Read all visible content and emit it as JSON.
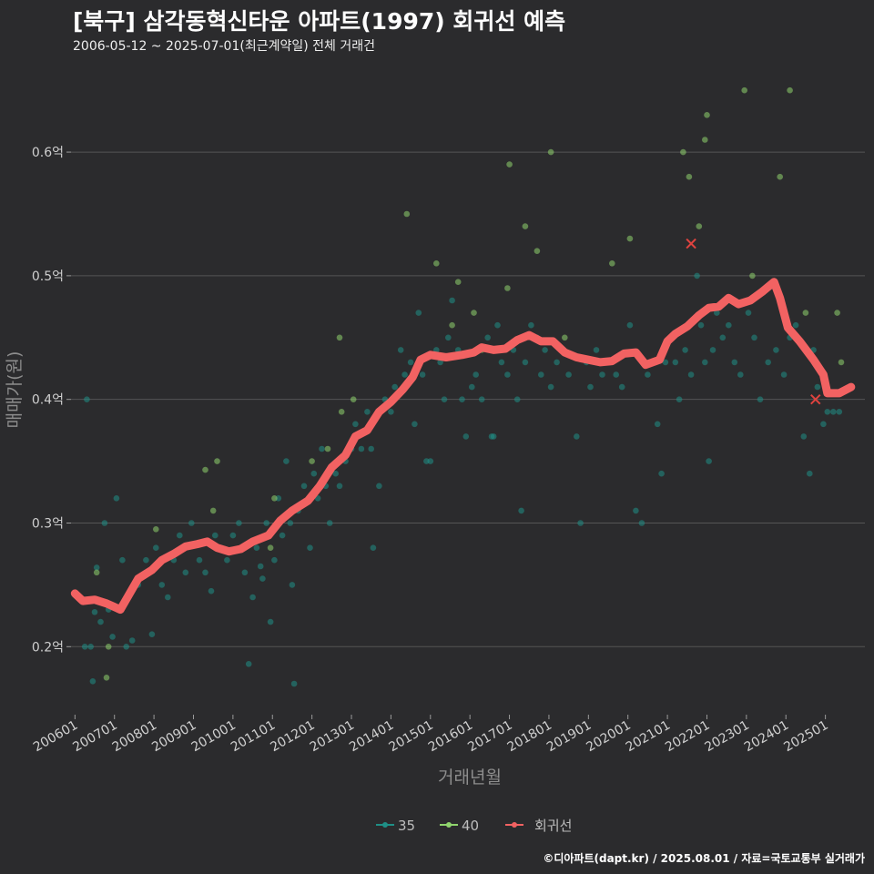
{
  "header": {
    "title": "[북구] 삼각동혁신타운 아파트(1997) 회귀선 예측",
    "subtitle": "2006-05-12 ~ 2025-07-01(최근계약일) 전체 거래건"
  },
  "footer": {
    "credit": "©디아파트(dapt.kr) / 2025.08.01 / 자료=국토교통부 실거래가"
  },
  "colors": {
    "background": "#2b2b2d",
    "grid": "#555555",
    "series_35": "#1f8f86",
    "series_40": "#8fd46d",
    "regression": "#f26262"
  },
  "chart_data": {
    "type": "scatter",
    "title": "[북구] 삼각동혁신타운 아파트(1997) 회귀선 예측",
    "xlabel": "거래년월",
    "ylabel": "매매가(원)",
    "x_unit": "year (decimal)",
    "xlim": [
      2005.9,
      2026.0
    ],
    "ylim": [
      0.145,
      0.67
    ],
    "x_ticks": [
      {
        "x": 2006.0,
        "label": "200601"
      },
      {
        "x": 2007.0,
        "label": "200701"
      },
      {
        "x": 2008.0,
        "label": "200801"
      },
      {
        "x": 2009.0,
        "label": "200901"
      },
      {
        "x": 2010.0,
        "label": "201001"
      },
      {
        "x": 2011.0,
        "label": "201101"
      },
      {
        "x": 2012.0,
        "label": "201201"
      },
      {
        "x": 2013.0,
        "label": "201301"
      },
      {
        "x": 2014.0,
        "label": "201401"
      },
      {
        "x": 2015.0,
        "label": "201501"
      },
      {
        "x": 2016.0,
        "label": "201601"
      },
      {
        "x": 2017.0,
        "label": "201701"
      },
      {
        "x": 2018.0,
        "label": "201801"
      },
      {
        "x": 2019.0,
        "label": "201901"
      },
      {
        "x": 2020.0,
        "label": "202001"
      },
      {
        "x": 2021.0,
        "label": "202101"
      },
      {
        "x": 2022.0,
        "label": "202201"
      },
      {
        "x": 2023.0,
        "label": "202301"
      },
      {
        "x": 2024.0,
        "label": "202401"
      },
      {
        "x": 2025.0,
        "label": "202501"
      }
    ],
    "y_ticks": [
      {
        "y": 0.2,
        "label": "0.2억"
      },
      {
        "y": 0.3,
        "label": "0.3억"
      },
      {
        "y": 0.4,
        "label": "0.4억"
      },
      {
        "y": 0.5,
        "label": "0.5억"
      },
      {
        "y": 0.6,
        "label": "0.6억"
      }
    ],
    "legend": [
      {
        "name": "35",
        "color": "#1f8f86"
      },
      {
        "name": "40",
        "color": "#8fd46d"
      },
      {
        "name": "회귀선",
        "color": "#f26262"
      }
    ],
    "legend_position": "bottom",
    "series": [
      {
        "name": "35",
        "type": "scatter",
        "points": [
          [
            2006.3,
            0.4
          ],
          [
            2006.25,
            0.2
          ],
          [
            2006.4,
            0.2
          ],
          [
            2006.45,
            0.172
          ],
          [
            2006.5,
            0.228
          ],
          [
            2006.55,
            0.264
          ],
          [
            2006.65,
            0.22
          ],
          [
            2006.75,
            0.3
          ],
          [
            2006.85,
            0.23
          ],
          [
            2006.95,
            0.208
          ],
          [
            2007.05,
            0.32
          ],
          [
            2007.2,
            0.27
          ],
          [
            2007.3,
            0.2
          ],
          [
            2007.45,
            0.205
          ],
          [
            2007.6,
            0.25
          ],
          [
            2007.8,
            0.27
          ],
          [
            2007.95,
            0.21
          ],
          [
            2008.05,
            0.28
          ],
          [
            2008.2,
            0.25
          ],
          [
            2008.35,
            0.24
          ],
          [
            2008.5,
            0.27
          ],
          [
            2008.65,
            0.29
          ],
          [
            2008.8,
            0.26
          ],
          [
            2008.95,
            0.3
          ],
          [
            2009.15,
            0.27
          ],
          [
            2009.3,
            0.26
          ],
          [
            2009.45,
            0.245
          ],
          [
            2009.55,
            0.29
          ],
          [
            2009.7,
            0.28
          ],
          [
            2009.85,
            0.27
          ],
          [
            2010.0,
            0.29
          ],
          [
            2010.15,
            0.3
          ],
          [
            2010.3,
            0.26
          ],
          [
            2010.4,
            0.186
          ],
          [
            2010.5,
            0.24
          ],
          [
            2010.6,
            0.28
          ],
          [
            2010.7,
            0.265
          ],
          [
            2010.75,
            0.255
          ],
          [
            2010.85,
            0.3
          ],
          [
            2010.95,
            0.22
          ],
          [
            2011.05,
            0.27
          ],
          [
            2011.15,
            0.32
          ],
          [
            2011.25,
            0.29
          ],
          [
            2011.35,
            0.35
          ],
          [
            2011.45,
            0.3
          ],
          [
            2011.5,
            0.25
          ],
          [
            2011.55,
            0.17
          ],
          [
            2011.65,
            0.31
          ],
          [
            2011.8,
            0.33
          ],
          [
            2011.95,
            0.28
          ],
          [
            2012.05,
            0.34
          ],
          [
            2012.15,
            0.32
          ],
          [
            2012.25,
            0.36
          ],
          [
            2012.35,
            0.33
          ],
          [
            2012.45,
            0.3
          ],
          [
            2012.6,
            0.34
          ],
          [
            2012.7,
            0.33
          ],
          [
            2012.85,
            0.35
          ],
          [
            2013.0,
            0.36
          ],
          [
            2013.1,
            0.38
          ],
          [
            2013.25,
            0.36
          ],
          [
            2013.4,
            0.39
          ],
          [
            2013.5,
            0.36
          ],
          [
            2013.55,
            0.28
          ],
          [
            2013.7,
            0.33
          ],
          [
            2013.85,
            0.4
          ],
          [
            2014.0,
            0.39
          ],
          [
            2014.1,
            0.41
          ],
          [
            2014.25,
            0.44
          ],
          [
            2014.35,
            0.42
          ],
          [
            2014.5,
            0.43
          ],
          [
            2014.6,
            0.38
          ],
          [
            2014.7,
            0.47
          ],
          [
            2014.8,
            0.42
          ],
          [
            2014.9,
            0.35
          ],
          [
            2015.0,
            0.35
          ],
          [
            2015.15,
            0.44
          ],
          [
            2015.25,
            0.43
          ],
          [
            2015.35,
            0.4
          ],
          [
            2015.45,
            0.45
          ],
          [
            2015.55,
            0.48
          ],
          [
            2015.7,
            0.44
          ],
          [
            2015.8,
            0.4
          ],
          [
            2015.9,
            0.37
          ],
          [
            2016.05,
            0.41
          ],
          [
            2016.15,
            0.42
          ],
          [
            2016.3,
            0.4
          ],
          [
            2016.45,
            0.45
          ],
          [
            2016.55,
            0.37
          ],
          [
            2016.6,
            0.37
          ],
          [
            2016.7,
            0.46
          ],
          [
            2016.8,
            0.43
          ],
          [
            2016.95,
            0.42
          ],
          [
            2017.1,
            0.44
          ],
          [
            2017.2,
            0.4
          ],
          [
            2017.3,
            0.31
          ],
          [
            2017.4,
            0.43
          ],
          [
            2017.55,
            0.46
          ],
          [
            2017.7,
            0.45
          ],
          [
            2017.8,
            0.42
          ],
          [
            2017.9,
            0.44
          ],
          [
            2018.05,
            0.41
          ],
          [
            2018.2,
            0.43
          ],
          [
            2018.35,
            0.44
          ],
          [
            2018.5,
            0.42
          ],
          [
            2018.7,
            0.37
          ],
          [
            2018.8,
            0.3
          ],
          [
            2018.95,
            0.43
          ],
          [
            2019.05,
            0.41
          ],
          [
            2019.2,
            0.44
          ],
          [
            2019.35,
            0.42
          ],
          [
            2019.55,
            0.43
          ],
          [
            2019.7,
            0.42
          ],
          [
            2019.85,
            0.41
          ],
          [
            2020.05,
            0.46
          ],
          [
            2020.2,
            0.31
          ],
          [
            2020.35,
            0.3
          ],
          [
            2020.5,
            0.42
          ],
          [
            2020.65,
            0.43
          ],
          [
            2020.75,
            0.38
          ],
          [
            2020.85,
            0.34
          ],
          [
            2020.95,
            0.43
          ],
          [
            2021.1,
            0.45
          ],
          [
            2021.2,
            0.43
          ],
          [
            2021.3,
            0.4
          ],
          [
            2021.45,
            0.44
          ],
          [
            2021.6,
            0.42
          ],
          [
            2021.75,
            0.5
          ],
          [
            2021.85,
            0.46
          ],
          [
            2021.95,
            0.43
          ],
          [
            2022.05,
            0.35
          ],
          [
            2022.15,
            0.44
          ],
          [
            2022.25,
            0.47
          ],
          [
            2022.4,
            0.45
          ],
          [
            2022.55,
            0.46
          ],
          [
            2022.7,
            0.43
          ],
          [
            2022.85,
            0.42
          ],
          [
            2023.05,
            0.47
          ],
          [
            2023.2,
            0.45
          ],
          [
            2023.35,
            0.4
          ],
          [
            2023.55,
            0.43
          ],
          [
            2023.75,
            0.44
          ],
          [
            2023.95,
            0.42
          ],
          [
            2024.1,
            0.45
          ],
          [
            2024.25,
            0.46
          ],
          [
            2024.45,
            0.37
          ],
          [
            2024.6,
            0.34
          ],
          [
            2024.7,
            0.44
          ],
          [
            2024.8,
            0.41
          ],
          [
            2024.95,
            0.38
          ],
          [
            2025.05,
            0.39
          ],
          [
            2025.2,
            0.39
          ],
          [
            2025.35,
            0.39
          ]
        ]
      },
      {
        "name": "40",
        "type": "scatter",
        "points": [
          [
            2006.55,
            0.26
          ],
          [
            2006.8,
            0.175
          ],
          [
            2006.85,
            0.2
          ],
          [
            2008.05,
            0.295
          ],
          [
            2009.3,
            0.343
          ],
          [
            2009.5,
            0.31
          ],
          [
            2009.6,
            0.35
          ],
          [
            2010.95,
            0.28
          ],
          [
            2011.05,
            0.32
          ],
          [
            2012.0,
            0.35
          ],
          [
            2012.4,
            0.36
          ],
          [
            2012.7,
            0.45
          ],
          [
            2012.75,
            0.39
          ],
          [
            2013.05,
            0.4
          ],
          [
            2014.4,
            0.55
          ],
          [
            2015.15,
            0.51
          ],
          [
            2015.55,
            0.46
          ],
          [
            2015.7,
            0.495
          ],
          [
            2016.1,
            0.47
          ],
          [
            2016.3,
            0.44
          ],
          [
            2016.95,
            0.49
          ],
          [
            2017.0,
            0.59
          ],
          [
            2017.4,
            0.54
          ],
          [
            2017.7,
            0.52
          ],
          [
            2018.05,
            0.6
          ],
          [
            2018.4,
            0.45
          ],
          [
            2019.6,
            0.51
          ],
          [
            2020.05,
            0.53
          ],
          [
            2021.4,
            0.6
          ],
          [
            2021.55,
            0.58
          ],
          [
            2021.8,
            0.54
          ],
          [
            2021.95,
            0.61
          ],
          [
            2022.0,
            0.63
          ],
          [
            2022.95,
            0.65
          ],
          [
            2023.15,
            0.5
          ],
          [
            2023.85,
            0.58
          ],
          [
            2024.1,
            0.65
          ],
          [
            2024.5,
            0.47
          ],
          [
            2025.3,
            0.47
          ],
          [
            2025.4,
            0.43
          ]
        ]
      },
      {
        "name": "회귀선",
        "type": "line",
        "points": [
          [
            2006.0,
            0.243
          ],
          [
            2006.2,
            0.237
          ],
          [
            2006.5,
            0.238
          ],
          [
            2006.8,
            0.235
          ],
          [
            2007.15,
            0.23
          ],
          [
            2007.6,
            0.255
          ],
          [
            2007.95,
            0.262
          ],
          [
            2008.2,
            0.27
          ],
          [
            2008.5,
            0.275
          ],
          [
            2008.8,
            0.281
          ],
          [
            2009.1,
            0.283
          ],
          [
            2009.35,
            0.285
          ],
          [
            2009.6,
            0.28
          ],
          [
            2009.9,
            0.277
          ],
          [
            2010.2,
            0.279
          ],
          [
            2010.5,
            0.285
          ],
          [
            2010.9,
            0.29
          ],
          [
            2011.2,
            0.302
          ],
          [
            2011.5,
            0.31
          ],
          [
            2011.9,
            0.318
          ],
          [
            2012.2,
            0.33
          ],
          [
            2012.5,
            0.345
          ],
          [
            2012.85,
            0.355
          ],
          [
            2013.1,
            0.37
          ],
          [
            2013.4,
            0.375
          ],
          [
            2013.7,
            0.39
          ],
          [
            2014.0,
            0.398
          ],
          [
            2014.3,
            0.408
          ],
          [
            2014.55,
            0.418
          ],
          [
            2014.75,
            0.432
          ],
          [
            2015.0,
            0.436
          ],
          [
            2015.4,
            0.434
          ],
          [
            2015.8,
            0.436
          ],
          [
            2016.1,
            0.438
          ],
          [
            2016.3,
            0.442
          ],
          [
            2016.6,
            0.44
          ],
          [
            2016.9,
            0.441
          ],
          [
            2017.2,
            0.448
          ],
          [
            2017.5,
            0.452
          ],
          [
            2017.8,
            0.447
          ],
          [
            2018.1,
            0.447
          ],
          [
            2018.4,
            0.438
          ],
          [
            2018.7,
            0.434
          ],
          [
            2019.0,
            0.432
          ],
          [
            2019.3,
            0.43
          ],
          [
            2019.6,
            0.431
          ],
          [
            2019.9,
            0.437
          ],
          [
            2020.2,
            0.438
          ],
          [
            2020.45,
            0.428
          ],
          [
            2020.8,
            0.432
          ],
          [
            2021.0,
            0.447
          ],
          [
            2021.2,
            0.453
          ],
          [
            2021.5,
            0.459
          ],
          [
            2021.8,
            0.468
          ],
          [
            2022.05,
            0.474
          ],
          [
            2022.3,
            0.475
          ],
          [
            2022.55,
            0.482
          ],
          [
            2022.8,
            0.477
          ],
          [
            2023.1,
            0.48
          ],
          [
            2023.4,
            0.487
          ],
          [
            2023.7,
            0.495
          ],
          [
            2023.85,
            0.482
          ],
          [
            2024.05,
            0.458
          ],
          [
            2024.35,
            0.447
          ],
          [
            2024.7,
            0.432
          ],
          [
            2024.95,
            0.42
          ],
          [
            2025.05,
            0.405
          ],
          [
            2025.35,
            0.405
          ],
          [
            2025.65,
            0.41
          ]
        ]
      }
    ],
    "annotations": [
      {
        "type": "marker-x",
        "x": 2021.6,
        "y": 0.526
      },
      {
        "type": "marker-x",
        "x": 2024.75,
        "y": 0.4
      }
    ]
  }
}
